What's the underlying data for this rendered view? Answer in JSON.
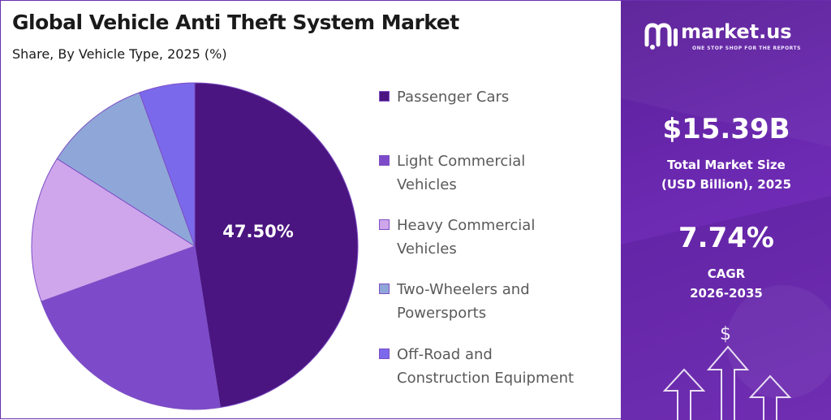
{
  "header": {
    "title": "Global Vehicle Anti Theft System Market",
    "subtitle": "Share, By Vehicle Type, 2025 (%)"
  },
  "chart_data": {
    "type": "pie",
    "title": "Global Vehicle Anti Theft System Market",
    "subtitle": "Share, By Vehicle Type, 2025 (%)",
    "categories": [
      "Passenger Cars",
      "Light Commercial Vehicles",
      "Heavy Commercial Vehicles",
      "Two-Wheelers and Powersports",
      "Off-Road and Construction Equipment"
    ],
    "values": [
      47.5,
      22.0,
      14.5,
      10.5,
      5.5
    ],
    "colors": [
      "#4a1580",
      "#7d4bc9",
      "#cfa6ec",
      "#8fa7d8",
      "#7b69ec"
    ],
    "data_labels": [
      "47.50%",
      "",
      "",
      "",
      ""
    ],
    "legend_position": "right",
    "slice_border_color": "#7c4fc4"
  },
  "legend": {
    "items": [
      {
        "line1": "Passenger Cars",
        "line2": ""
      },
      {
        "line1": "Light Commercial",
        "line2": "Vehicles"
      },
      {
        "line1": "Heavy Commercial",
        "line2": "Vehicles"
      },
      {
        "line1": "Two-Wheelers and",
        "line2": "Powersports"
      },
      {
        "line1": "Off-Road and",
        "line2": "Construction Equipment"
      }
    ]
  },
  "brand": {
    "name": "market.us",
    "tagline": "ONE STOP SHOP FOR THE REPORTS",
    "logo_icon": "market-us-logo-icon"
  },
  "stats": {
    "market_size_value": "$15.39B",
    "market_size_label_line1": "Total Market Size",
    "market_size_label_line2": "(USD Billion), 2025",
    "cagr_value": "7.74%",
    "cagr_label_line1": "CAGR",
    "cagr_label_line2": "2026-2035"
  },
  "decor": {
    "dollar_symbol": "$",
    "panel_color": "#6a27ad"
  }
}
